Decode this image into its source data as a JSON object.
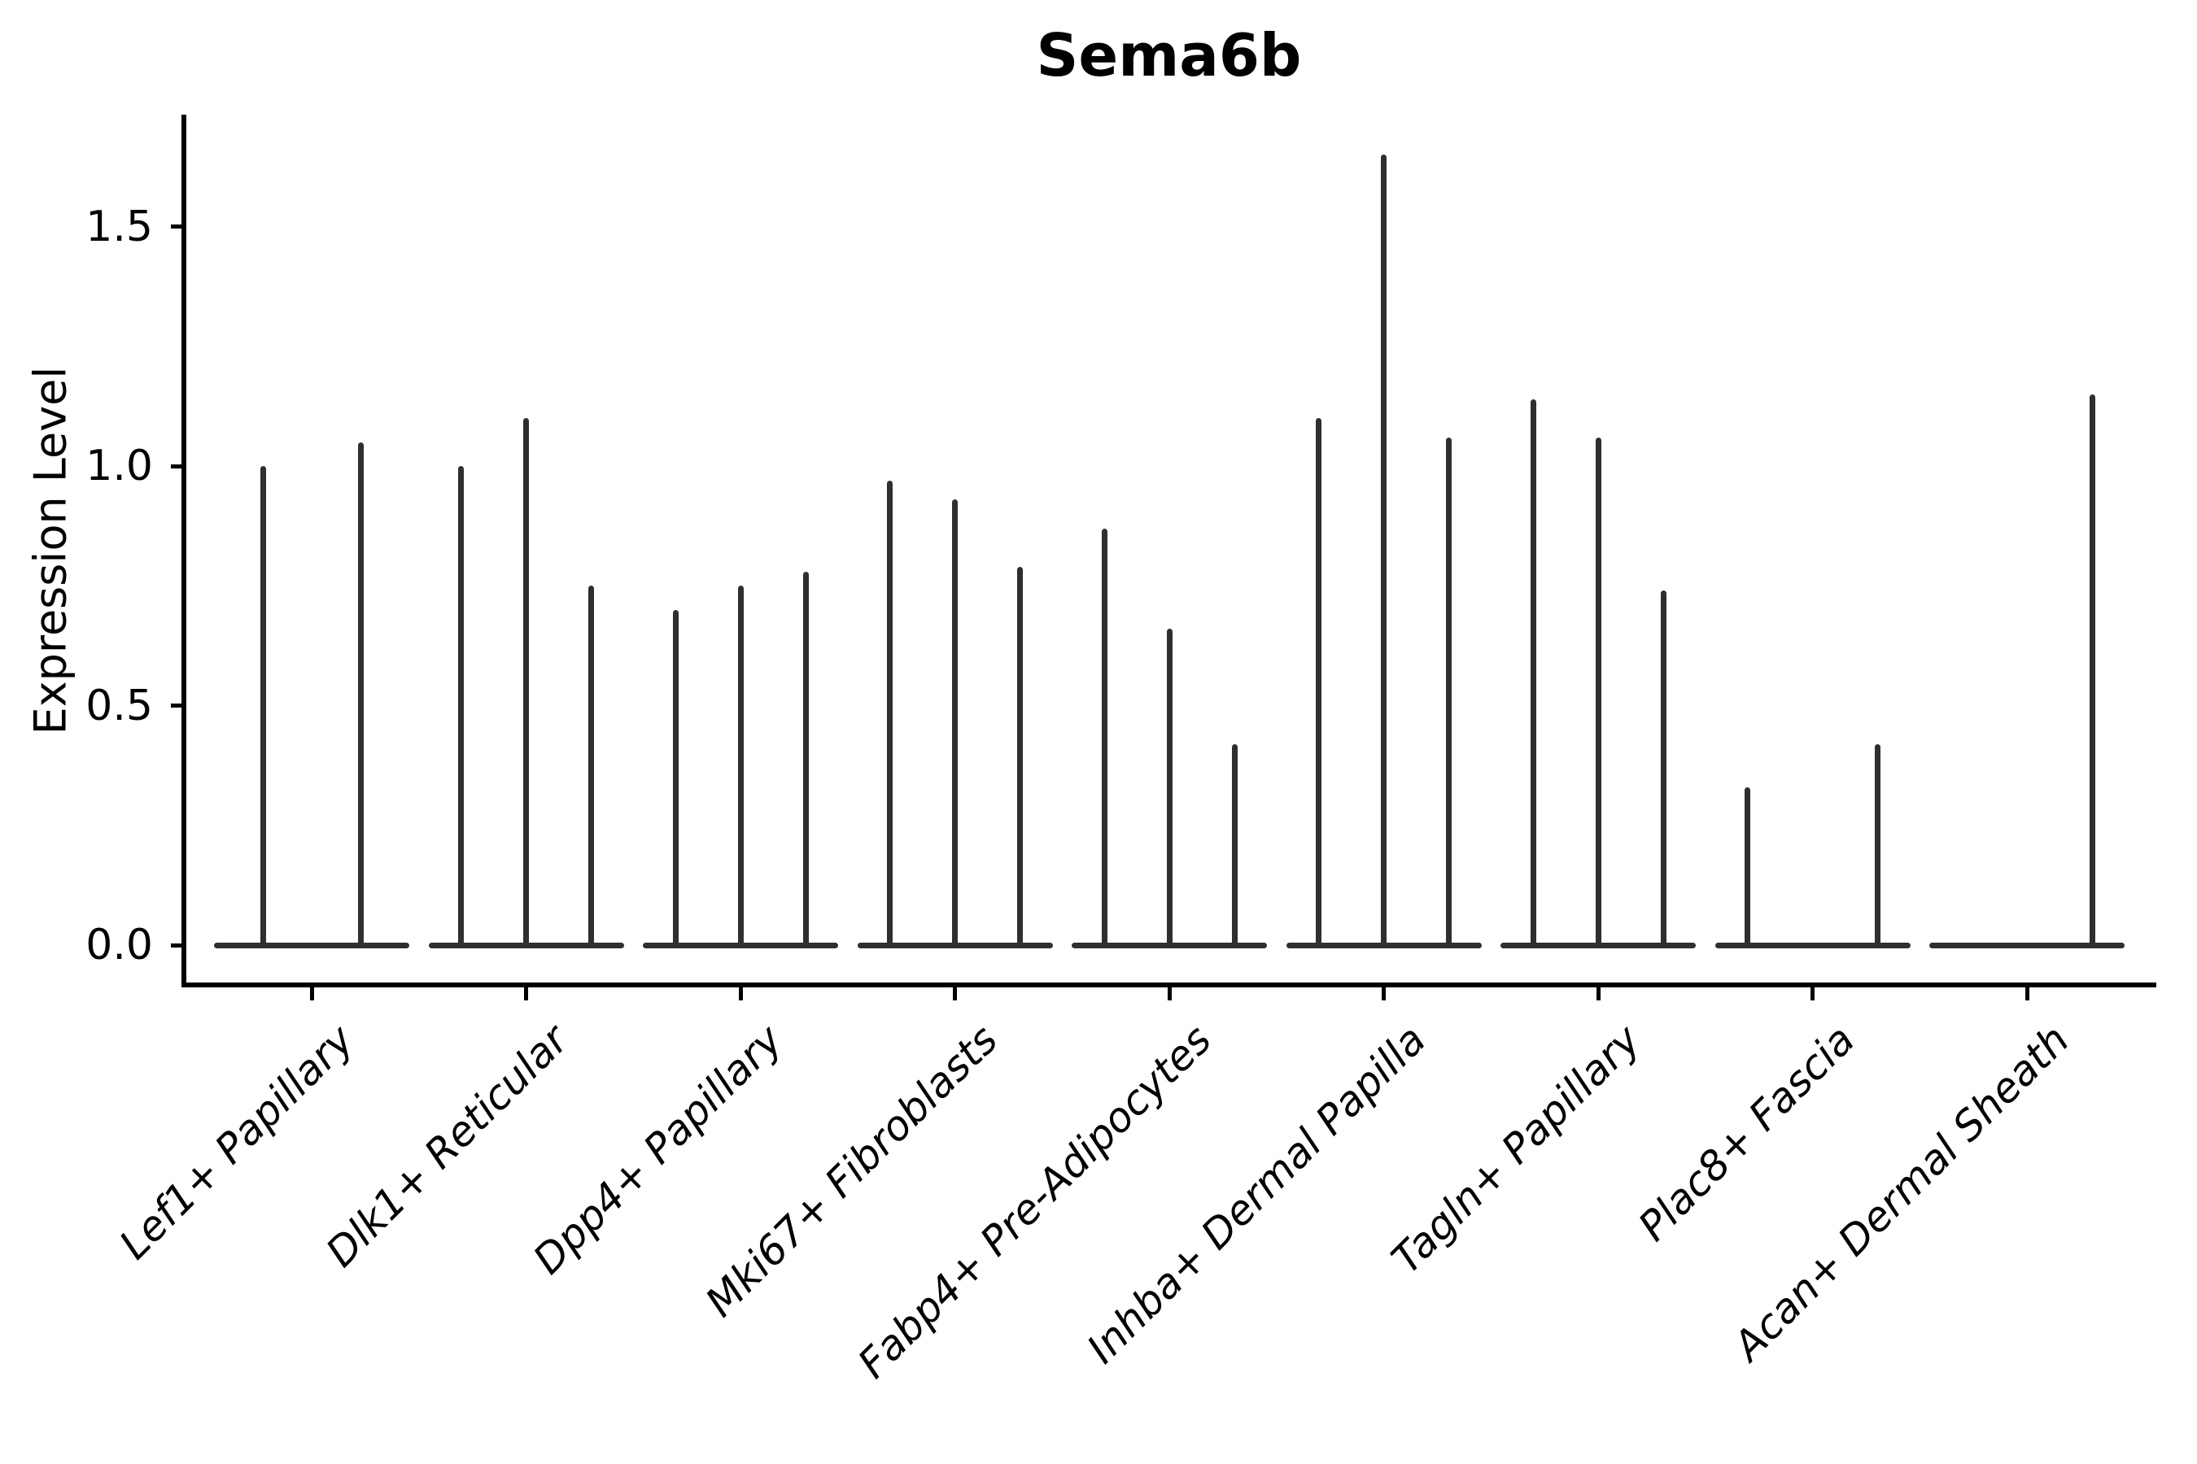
{
  "chart_data": {
    "type": "violin",
    "title": "Sema6b",
    "ylabel": "Expression Level",
    "xlabel": "",
    "grid": false,
    "legend": "none",
    "yticks": [
      0.0,
      0.5,
      1.0,
      1.5
    ],
    "ytick_labels": [
      "0.0",
      "0.5",
      "1.0",
      "1.5"
    ],
    "ylim": [
      -0.08,
      1.73
    ],
    "categories": [
      "Lef1+ Papillary",
      "Dlk1+ Reticular",
      "Dpp4+ Papillary",
      "Mki67+ Fibroblasts",
      "Fabp4+ Pre-Adipocytes",
      "Inhba+ Dermal Papilla",
      "Tagln+ Papillary",
      "Plac8+ Fascia",
      "Acan+ Dermal Sheath"
    ],
    "violin_groups": [
      {
        "category": "Lef1+ Papillary",
        "violins": [
          {
            "dodge_offset": -60,
            "max_expression": 1.0
          },
          {
            "dodge_offset": 60,
            "max_expression": 1.05
          }
        ]
      },
      {
        "category": "Dlk1+ Reticular",
        "violins": [
          {
            "dodge_offset": -80,
            "max_expression": 1.0
          },
          {
            "dodge_offset": 0,
            "max_expression": 1.1
          },
          {
            "dodge_offset": 80,
            "max_expression": 0.75
          }
        ]
      },
      {
        "category": "Dpp4+ Papillary",
        "violins": [
          {
            "dodge_offset": -80,
            "max_expression": 0.7
          },
          {
            "dodge_offset": 0,
            "max_expression": 0.75
          },
          {
            "dodge_offset": 80,
            "max_expression": 0.78
          }
        ]
      },
      {
        "category": "Mki67+ Fibroblasts",
        "violins": [
          {
            "dodge_offset": -80,
            "max_expression": 0.97
          },
          {
            "dodge_offset": 0,
            "max_expression": 0.93
          },
          {
            "dodge_offset": 80,
            "max_expression": 0.79
          }
        ]
      },
      {
        "category": "Fabp4+ Pre-Adipocytes",
        "violins": [
          {
            "dodge_offset": -80,
            "max_expression": 0.87
          },
          {
            "dodge_offset": 0,
            "max_expression": 0.66
          },
          {
            "dodge_offset": 80,
            "max_expression": 0.42
          }
        ]
      },
      {
        "category": "Inhba+ Dermal Papilla",
        "violins": [
          {
            "dodge_offset": -80,
            "max_expression": 1.1
          },
          {
            "dodge_offset": 0,
            "max_expression": 1.65
          },
          {
            "dodge_offset": 80,
            "max_expression": 1.06
          }
        ]
      },
      {
        "category": "Tagln+ Papillary",
        "violins": [
          {
            "dodge_offset": -80,
            "max_expression": 1.14
          },
          {
            "dodge_offset": 0,
            "max_expression": 1.06
          },
          {
            "dodge_offset": 80,
            "max_expression": 0.74
          }
        ]
      },
      {
        "category": "Plac8+ Fascia",
        "violins": [
          {
            "dodge_offset": -80,
            "max_expression": 0.33
          },
          {
            "dodge_offset": 80,
            "max_expression": 0.42
          }
        ]
      },
      {
        "category": "Acan+ Dermal Sheath",
        "violins": [
          {
            "dodge_offset": 80,
            "max_expression": 1.15
          }
        ]
      }
    ],
    "colors": {
      "violin_stroke": "#2f2f2f",
      "axis": "#000000",
      "text": "#000000",
      "background": "#ffffff"
    }
  }
}
